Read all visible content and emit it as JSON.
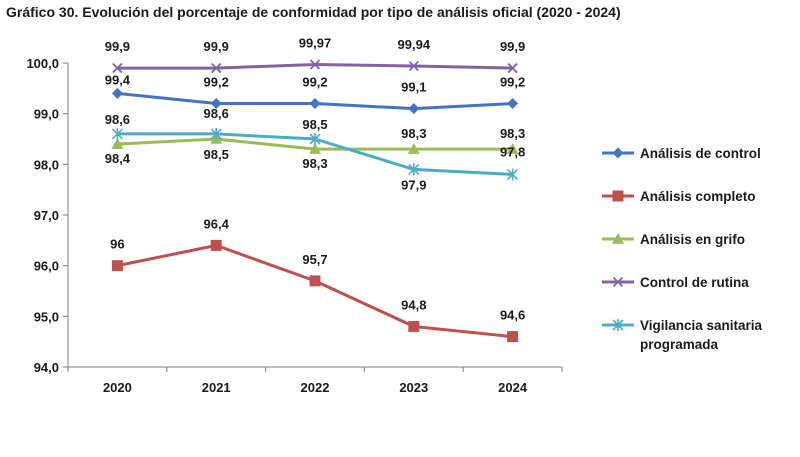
{
  "chart_data": {
    "type": "line",
    "title": "Gráfico 30. Evolución del porcentaje de conformidad por tipo de análisis oficial (2020 - 2024)",
    "xlabel": "",
    "ylabel": "",
    "categories": [
      "2020",
      "2021",
      "2022",
      "2023",
      "2024"
    ],
    "ylim": [
      94.0,
      100.0
    ],
    "yticks": [
      94.0,
      95.0,
      96.0,
      97.0,
      98.0,
      99.0,
      100.0
    ],
    "ytick_labels": [
      "94,0",
      "95,0",
      "96,0",
      "97,0",
      "98,0",
      "99,0",
      "100,0"
    ],
    "grid": false,
    "legend_position": "right",
    "series": [
      {
        "name": "Análisis de control",
        "legend_lines": [
          "Análisis de control"
        ],
        "color": "#4472C4",
        "marker": "diamond",
        "values": [
          99.4,
          99.2,
          99.2,
          99.1,
          99.2
        ],
        "labels": [
          "99,4",
          "99,2",
          "99,2",
          "99,1",
          "99,2"
        ]
      },
      {
        "name": "Análisis completo",
        "legend_lines": [
          "Análisis completo"
        ],
        "color": "#C0504D",
        "marker": "square",
        "values": [
          96.0,
          96.4,
          95.7,
          94.8,
          94.6
        ],
        "labels": [
          "96",
          "96,4",
          "95,7",
          "94,8",
          "94,6"
        ]
      },
      {
        "name": "Análisis en grifo",
        "legend_lines": [
          "Análisis en grifo"
        ],
        "color": "#9BBB59",
        "marker": "triangle",
        "values": [
          98.4,
          98.5,
          98.3,
          98.3,
          98.3
        ],
        "labels": [
          "98,4",
          "98,5",
          "98,3",
          "98,3",
          "98,3"
        ]
      },
      {
        "name": "Control de rutina",
        "legend_lines": [
          "Control de rutina"
        ],
        "color": "#8064A2",
        "marker": "x",
        "values": [
          99.9,
          99.9,
          99.97,
          99.94,
          99.9
        ],
        "labels": [
          "99,9",
          "99,9",
          "99,97",
          "99,94",
          "99,9"
        ]
      },
      {
        "name": "Vigilancia sanitaria programada",
        "legend_lines": [
          "Vigilancia sanitaria",
          "programada"
        ],
        "color": "#4BACC6",
        "marker": "asterisk",
        "values": [
          98.6,
          98.6,
          98.5,
          97.9,
          97.8
        ],
        "labels": [
          "98,6",
          "98,6",
          "98,5",
          "97,9",
          "97,8"
        ]
      }
    ]
  }
}
